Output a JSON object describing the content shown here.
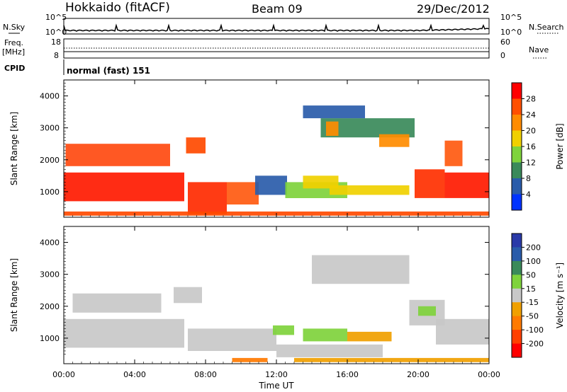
{
  "header": {
    "station": "Hokkaido (fitACF)",
    "beam": "Beam 09",
    "date": "29/Dec/2012"
  },
  "side_labels": {
    "nsky": "N.Sky",
    "nsearch": "N.Search",
    "freq": "Freq.",
    "freq_unit": "[MHz]",
    "nave": "Nave",
    "cpid": "CPID",
    "cpid_text": "normal (fast) 151"
  },
  "small_axes": {
    "noise_left_ticks": [
      "10^5",
      "10^0"
    ],
    "noise_right_ticks": [
      "10^5",
      "10^0"
    ],
    "freq_ticks": [
      "18",
      "8"
    ],
    "nave_ticks": [
      "60",
      "0"
    ]
  },
  "colors": {
    "white": "#ffffff",
    "gray": "#c8c8c8",
    "dark_green": "#3a8a5a"
  },
  "chart_data": [
    {
      "type": "heatmap",
      "name": "power",
      "xlabel": "",
      "ylabel": "Slant Range [km]",
      "xlim": [
        0,
        24
      ],
      "ylim": [
        200,
        4500
      ],
      "yticks": [
        "1000",
        "2000",
        "3000",
        "4000"
      ],
      "xticks": [
        "00:00",
        "04:00",
        "08:00",
        "12:00",
        "16:00",
        "20:00",
        "00:00"
      ],
      "colorbar": {
        "label": "Power [dB]",
        "ticks": [
          "4",
          "8",
          "12",
          "16",
          "20",
          "24",
          "28"
        ],
        "colors": [
          "#0033ff",
          "#2a5caa",
          "#3a8a5a",
          "#7fd33c",
          "#f0d000",
          "#ff8c00",
          "#ff5000",
          "#ff0000"
        ]
      },
      "regions": [
        {
          "t0": 0.0,
          "t1": 6.8,
          "r0": 700,
          "r1": 1600,
          "level": "#ff1a00"
        },
        {
          "t0": 0.1,
          "t1": 6.0,
          "r0": 1800,
          "r1": 2500,
          "level": "#ff4a10"
        },
        {
          "t0": 6.9,
          "t1": 8.0,
          "r0": 2200,
          "r1": 2700,
          "level": "#ff4a00"
        },
        {
          "t0": 7.0,
          "t1": 9.2,
          "r0": 300,
          "r1": 1300,
          "level": "#ff2a00"
        },
        {
          "t0": 9.2,
          "t1": 11.0,
          "r0": 600,
          "r1": 1300,
          "level": "#ff5a10"
        },
        {
          "t0": 10.8,
          "t1": 12.6,
          "r0": 900,
          "r1": 1500,
          "level": "#2a5caa"
        },
        {
          "t0": 12.5,
          "t1": 16.0,
          "r0": 800,
          "r1": 1300,
          "level": "#7fd33c"
        },
        {
          "t0": 13.5,
          "t1": 15.5,
          "r0": 1100,
          "r1": 1500,
          "level": "#f0d000"
        },
        {
          "t0": 15.0,
          "t1": 19.5,
          "r0": 900,
          "r1": 1200,
          "level": "#f0d000"
        },
        {
          "t0": 14.5,
          "t1": 19.8,
          "r0": 2700,
          "r1": 3300,
          "level": "#3a8a5a"
        },
        {
          "t0": 14.8,
          "t1": 15.5,
          "r0": 2750,
          "r1": 3200,
          "level": "#ff8c00"
        },
        {
          "t0": 17.8,
          "t1": 19.5,
          "r0": 2400,
          "r1": 2800,
          "level": "#ff8c00"
        },
        {
          "t0": 13.5,
          "t1": 17.0,
          "r0": 3300,
          "r1": 3700,
          "level": "#2a5caa"
        },
        {
          "t0": 19.8,
          "t1": 21.5,
          "r0": 800,
          "r1": 1700,
          "level": "#ff3000"
        },
        {
          "t0": 21.5,
          "t1": 24.0,
          "r0": 800,
          "r1": 1600,
          "level": "#ff1a00"
        },
        {
          "t0": 21.5,
          "t1": 22.5,
          "r0": 1800,
          "r1": 2600,
          "level": "#ff5a10"
        },
        {
          "t0": 0.0,
          "t1": 24.0,
          "r0": 250,
          "r1": 380,
          "level": "#ff4a00"
        }
      ]
    },
    {
      "type": "heatmap",
      "name": "velocity",
      "xlabel": "Time UT",
      "ylabel": "Slant Range [km]",
      "xlim": [
        0,
        24
      ],
      "ylim": [
        200,
        4500
      ],
      "yticks": [
        "1000",
        "2000",
        "3000",
        "4000"
      ],
      "xticks": [
        "00:00",
        "04:00",
        "08:00",
        "12:00",
        "16:00",
        "20:00",
        "00:00"
      ],
      "colorbar": {
        "label": "Velocity [m s⁻¹]",
        "ticks": [
          "200",
          "100",
          "50",
          "15",
          "-15",
          "-50",
          "-100",
          "-200"
        ],
        "colors": [
          "#2a3aa8",
          "#2a5caa",
          "#3a8a5a",
          "#7fd33c",
          "#c8c8c8",
          "#f0a000",
          "#ff7a00",
          "#ff4000",
          "#ff0000"
        ]
      },
      "regions": [
        {
          "t0": 0.0,
          "t1": 6.8,
          "r0": 700,
          "r1": 1600,
          "level": "#c8c8c8"
        },
        {
          "t0": 0.5,
          "t1": 5.5,
          "r0": 1800,
          "r1": 2400,
          "level": "#c8c8c8"
        },
        {
          "t0": 6.2,
          "t1": 7.8,
          "r0": 2100,
          "r1": 2600,
          "level": "#c8c8c8"
        },
        {
          "t0": 7.0,
          "t1": 12.0,
          "r0": 600,
          "r1": 1300,
          "level": "#c8c8c8"
        },
        {
          "t0": 11.8,
          "t1": 13.0,
          "r0": 1100,
          "r1": 1400,
          "level": "#7fd33c"
        },
        {
          "t0": 13.5,
          "t1": 16.0,
          "r0": 900,
          "r1": 1300,
          "level": "#7fd33c"
        },
        {
          "t0": 16.0,
          "t1": 18.5,
          "r0": 900,
          "r1": 1200,
          "level": "#f0a000"
        },
        {
          "t0": 12.0,
          "t1": 18.0,
          "r0": 400,
          "r1": 800,
          "level": "#c8c8c8"
        },
        {
          "t0": 14.0,
          "t1": 19.5,
          "r0": 2700,
          "r1": 3600,
          "level": "#c8c8c8"
        },
        {
          "t0": 19.5,
          "t1": 21.5,
          "r0": 1400,
          "r1": 2200,
          "level": "#c8c8c8"
        },
        {
          "t0": 21.0,
          "t1": 24.0,
          "r0": 800,
          "r1": 1600,
          "level": "#c8c8c8"
        },
        {
          "t0": 20.0,
          "t1": 21.0,
          "r0": 1700,
          "r1": 2000,
          "level": "#7fd33c"
        },
        {
          "t0": 9.5,
          "t1": 11.5,
          "r0": 250,
          "r1": 380,
          "level": "#ff7a00"
        },
        {
          "t0": 13.0,
          "t1": 24.0,
          "r0": 250,
          "r1": 380,
          "level": "#f0a000"
        }
      ]
    }
  ]
}
